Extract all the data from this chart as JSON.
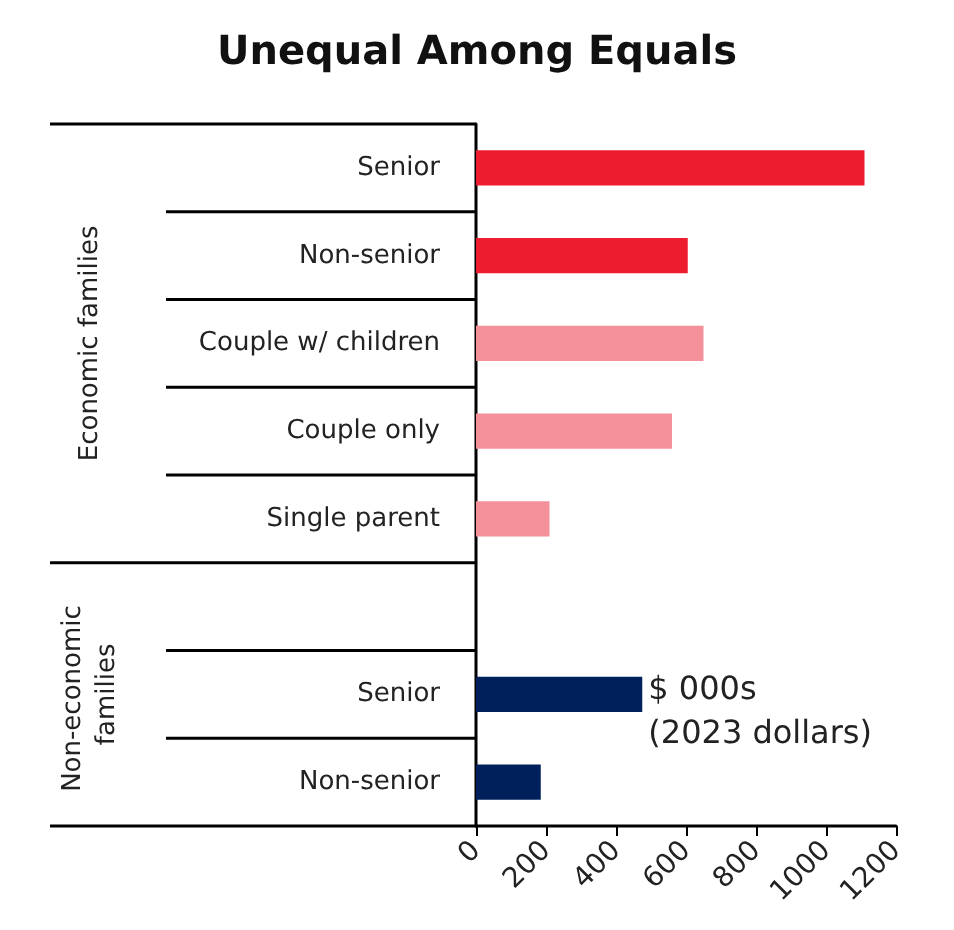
{
  "chart_data": {
    "type": "bar",
    "orientation": "horizontal",
    "title": "Unequal Among Equals",
    "xlabel": "$ 000s\n(2023 dollars)",
    "categories": [
      "Senior",
      "Non-senior",
      "Couple w/ children",
      "Couple only",
      "Single parent",
      null,
      "Senior",
      "Non-senior"
    ],
    "values": [
      1110,
      605,
      650,
      560,
      210,
      null,
      475,
      185
    ],
    "colors": [
      "#ed1c2e",
      "#ed1c2e",
      "#f4909a",
      "#f4909a",
      "#f4909a",
      "#00205b",
      "#00205b",
      "#00205b"
    ],
    "annotations": [
      "Economic families",
      "Non-economic families"
    ],
    "xlim": [
      0,
      1200
    ],
    "xticks": [
      0,
      200,
      400,
      600,
      800,
      1000,
      1200
    ],
    "grid": false
  }
}
